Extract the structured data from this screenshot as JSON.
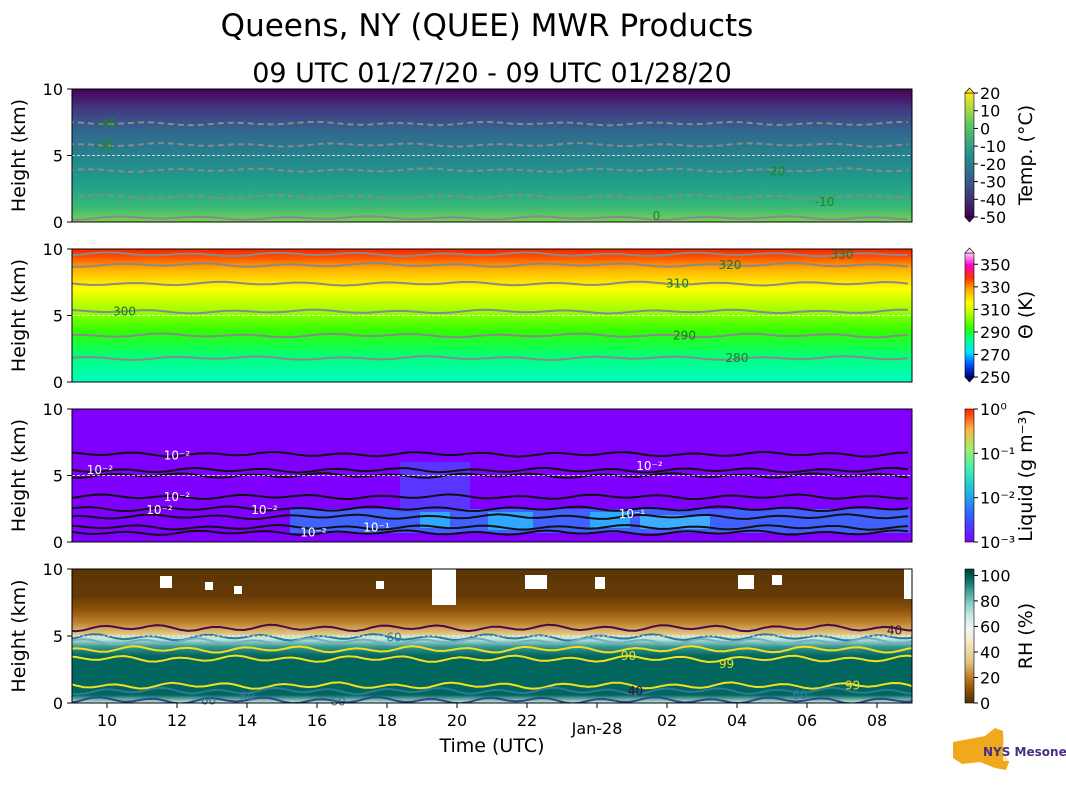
{
  "title": "Queens, NY (QUEE) MWR Products",
  "subtitle": "09 UTC 01/27/20 - 09 UTC 01/28/20",
  "xlabel": "Time (UTC)",
  "logo_text": "NYS Mesonet",
  "colors": {
    "contour_gray": "#8a8a8a",
    "contour_black": "#111111",
    "temp_label": "#1a8a1a"
  },
  "chart_data": [
    {
      "type": "heatmap",
      "name": "temperature",
      "ylabel": "Height (km)",
      "ylim": [
        0,
        10
      ],
      "yticks": [
        "0",
        "5",
        "10"
      ],
      "colorbar_label": "Temp. (°C)",
      "colorbar_ticks": [
        "20",
        "10",
        "0",
        "-10",
        "-20",
        "-30",
        "-40",
        "-50"
      ],
      "colorbar_range": [
        -50,
        20
      ],
      "colormap": [
        "#440154",
        "#3b528b",
        "#21918c",
        "#5ec962",
        "#fde725"
      ],
      "contours": [
        {
          "value": "0",
          "height_km": 0.3
        },
        {
          "value": "-10",
          "height_km": 1.9
        },
        {
          "value": "-20",
          "height_km": 3.9
        },
        {
          "value": "-30",
          "height_km": 5.8
        },
        {
          "value": "-40",
          "height_km": 7.4
        }
      ],
      "contour_labels": [
        {
          "text": "-40",
          "time_h": 1.0,
          "height_km": 7.4
        },
        {
          "text": "-30",
          "time_h": 0.9,
          "height_km": 5.8
        },
        {
          "text": "-20",
          "time_h": 20.1,
          "height_km": 3.8
        },
        {
          "text": "-10",
          "time_h": 21.5,
          "height_km": 1.5
        },
        {
          "text": "0",
          "time_h": 16.7,
          "height_km": 0.45
        }
      ]
    },
    {
      "type": "heatmap",
      "name": "potential_temperature",
      "ylabel": "Height (km)",
      "ylim": [
        0,
        10
      ],
      "yticks": [
        "0",
        "5",
        "10"
      ],
      "colorbar_label": "Θ (K)",
      "colorbar_ticks": [
        "350",
        "330",
        "310",
        "290",
        "270",
        "250"
      ],
      "colorbar_range": [
        250,
        360
      ],
      "colormap": [
        "#00007a",
        "#0050ff",
        "#00e4ff",
        "#00ff90",
        "#30ff00",
        "#aaff00",
        "#ffff00",
        "#ffb000",
        "#ff3000",
        "#ff00c8",
        "#ffd0ff"
      ],
      "contours": [
        {
          "value": "280",
          "height_km": 1.8
        },
        {
          "value": "290",
          "height_km": 3.5
        },
        {
          "value": "300",
          "height_km": 5.3
        },
        {
          "value": "310",
          "height_km": 7.4
        },
        {
          "value": "320",
          "height_km": 8.8
        },
        {
          "value": "330",
          "height_km": 9.6
        }
      ],
      "contour_labels": [
        {
          "text": "280",
          "time_h": 19.0,
          "height_km": 1.8
        },
        {
          "text": "290",
          "time_h": 17.5,
          "height_km": 3.5
        },
        {
          "text": "300",
          "time_h": 1.5,
          "height_km": 5.3
        },
        {
          "text": "310",
          "time_h": 17.3,
          "height_km": 7.4
        },
        {
          "text": "320",
          "time_h": 18.8,
          "height_km": 8.8
        },
        {
          "text": "330",
          "time_h": 22.0,
          "height_km": 9.6
        }
      ]
    },
    {
      "type": "heatmap",
      "name": "liquid_water",
      "ylabel": "Height (km)",
      "ylim": [
        0,
        10
      ],
      "yticks": [
        "0",
        "5",
        "10"
      ],
      "colorbar_label": "Liquid (g m⁻³)",
      "colorbar_ticks": [
        "10⁰",
        "10⁻¹",
        "10⁻²",
        "10⁻³"
      ],
      "colorbar_range": [
        0.001,
        1
      ],
      "colormap": [
        "#8000ff",
        "#3060ff",
        "#20c0e0",
        "#40f0b0",
        "#a0f070",
        "#ffb040",
        "#ff2000"
      ],
      "contour_labels": [
        {
          "text": "10⁻²",
          "time_h": 3.0,
          "height_km": 6.5
        },
        {
          "text": "10⁻²",
          "time_h": 0.8,
          "height_km": 5.4
        },
        {
          "text": "10⁻²",
          "time_h": 3.0,
          "height_km": 3.4
        },
        {
          "text": "10⁻²",
          "time_h": 2.5,
          "height_km": 2.4
        },
        {
          "text": "10⁻²",
          "time_h": 5.5,
          "height_km": 2.4
        },
        {
          "text": "10⁻²",
          "time_h": 6.9,
          "height_km": 0.7
        },
        {
          "text": "10⁻¹",
          "time_h": 8.7,
          "height_km": 1.1
        },
        {
          "text": "10⁻¹",
          "time_h": 16.0,
          "height_km": 2.1
        },
        {
          "text": "10⁻²",
          "time_h": 16.5,
          "height_km": 5.7
        }
      ]
    },
    {
      "type": "heatmap",
      "name": "relative_humidity",
      "ylabel": "Height (km)",
      "ylim": [
        0,
        10
      ],
      "yticks": [
        "0",
        "5",
        "10"
      ],
      "colorbar_label": "RH (%)",
      "colorbar_ticks": [
        "100",
        "80",
        "60",
        "40",
        "20",
        "0"
      ],
      "colorbar_range": [
        0,
        105
      ],
      "colormap": [
        "#543005",
        "#8c510a",
        "#bf812d",
        "#dfc27d",
        "#f6e8c3",
        "#f5f5f5",
        "#c7eae5",
        "#80cdc1",
        "#35978f",
        "#01665e",
        "#003c30"
      ],
      "contour_labels": [
        {
          "text": "40",
          "time_h": 23.5,
          "height_km": 5.4
        },
        {
          "text": "60",
          "time_h": 9.2,
          "height_km": 4.9
        },
        {
          "text": "90",
          "time_h": 15.9,
          "height_km": 3.5
        },
        {
          "text": "99",
          "time_h": 18.7,
          "height_km": 2.9
        },
        {
          "text": "60",
          "time_h": 20.8,
          "height_km": 0.6
        },
        {
          "text": "99",
          "time_h": 22.3,
          "height_km": 1.3
        },
        {
          "text": "60",
          "time_h": 3.9,
          "height_km": 0.2
        },
        {
          "text": "60",
          "time_h": 5.0,
          "height_km": 0.5
        },
        {
          "text": "60",
          "time_h": 7.6,
          "height_km": 0.1
        },
        {
          "text": "40",
          "time_h": 16.1,
          "height_km": 0.9
        }
      ]
    }
  ],
  "xaxis": {
    "start": "2020-01-27T09:00Z",
    "end": "2020-01-28T09:00Z",
    "ticks": [
      {
        "label": "10",
        "time": "2020-01-27T10:00Z"
      },
      {
        "label": "12",
        "time": "2020-01-27T12:00Z"
      },
      {
        "label": "14",
        "time": "2020-01-27T14:00Z"
      },
      {
        "label": "16",
        "time": "2020-01-27T16:00Z"
      },
      {
        "label": "18",
        "time": "2020-01-27T18:00Z"
      },
      {
        "label": "20",
        "time": "2020-01-27T20:00Z"
      },
      {
        "label": "22",
        "time": "2020-01-27T22:00Z"
      },
      {
        "label": "Jan-28",
        "time": "2020-01-28T00:00Z"
      },
      {
        "label": "02",
        "time": "2020-01-28T02:00Z"
      },
      {
        "label": "04",
        "time": "2020-01-28T04:00Z"
      },
      {
        "label": "06",
        "time": "2020-01-28T06:00Z"
      },
      {
        "label": "08",
        "time": "2020-01-28T08:00Z"
      }
    ]
  }
}
